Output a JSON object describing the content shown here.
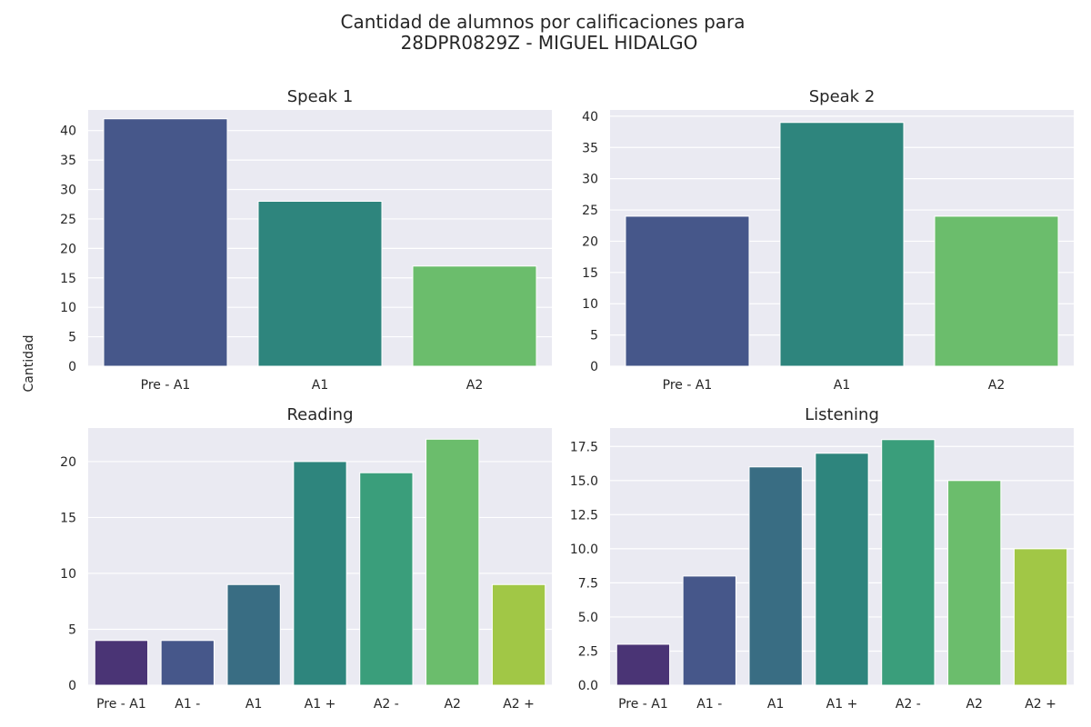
{
  "figure": {
    "title_line1": "Cantidad de alumnos por calificaciones para",
    "title_line2": "28DPR0829Z - MIGUEL HIDALGO",
    "ylabel": "Cantidad"
  },
  "chart_data": [
    {
      "type": "bar",
      "title": "Speak 1",
      "categories": [
        "Pre - A1",
        "A1",
        "A2"
      ],
      "values": [
        42,
        28,
        17
      ],
      "colors": [
        "#46578a",
        "#2e857d",
        "#6bbd6c"
      ],
      "ylim": [
        0,
        43.5
      ],
      "yticks": [
        0,
        5,
        10,
        15,
        20,
        25,
        30,
        35,
        40
      ],
      "ytick_labels": [
        "0",
        "5",
        "10",
        "15",
        "20",
        "25",
        "30",
        "35",
        "40"
      ],
      "grid": true
    },
    {
      "type": "bar",
      "title": "Speak 2",
      "categories": [
        "Pre - A1",
        "A1",
        "A2"
      ],
      "values": [
        24,
        39,
        24
      ],
      "colors": [
        "#46578a",
        "#2e857d",
        "#6bbd6c"
      ],
      "ylim": [
        0,
        41
      ],
      "yticks": [
        0,
        5,
        10,
        15,
        20,
        25,
        30,
        35,
        40
      ],
      "ytick_labels": [
        "0",
        "5",
        "10",
        "15",
        "20",
        "25",
        "30",
        "35",
        "40"
      ],
      "grid": true
    },
    {
      "type": "bar",
      "title": "Reading",
      "categories": [
        "Pre - A1",
        "A1 -",
        "A1",
        "A1 +",
        "A2 -",
        "A2",
        "A2 +"
      ],
      "values": [
        4,
        4,
        9,
        20,
        19,
        22,
        9
      ],
      "colors": [
        "#4a3475",
        "#46578a",
        "#396d83",
        "#2e857d",
        "#3a9e7b",
        "#6bbd6c",
        "#a1c746"
      ],
      "ylim": [
        0,
        23
      ],
      "yticks": [
        0,
        5,
        10,
        15,
        20
      ],
      "ytick_labels": [
        "0",
        "5",
        "10",
        "15",
        "20"
      ],
      "grid": true
    },
    {
      "type": "bar",
      "title": "Listening",
      "categories": [
        "Pre - A1",
        "A1 -",
        "A1",
        "A1 +",
        "A2 -",
        "A2",
        "A2 +"
      ],
      "values": [
        3,
        8,
        16,
        17,
        18,
        15,
        10
      ],
      "colors": [
        "#4a3475",
        "#46578a",
        "#396d83",
        "#2e857d",
        "#3a9e7b",
        "#6bbd6c",
        "#a1c746"
      ],
      "ylim": [
        0,
        18.85
      ],
      "yticks": [
        0,
        2.5,
        5,
        7.5,
        10,
        12.5,
        15,
        17.5
      ],
      "ytick_labels": [
        "0.0",
        "2.5",
        "5.0",
        "7.5",
        "10.0",
        "12.5",
        "15.0",
        "17.5"
      ],
      "grid": true
    }
  ]
}
